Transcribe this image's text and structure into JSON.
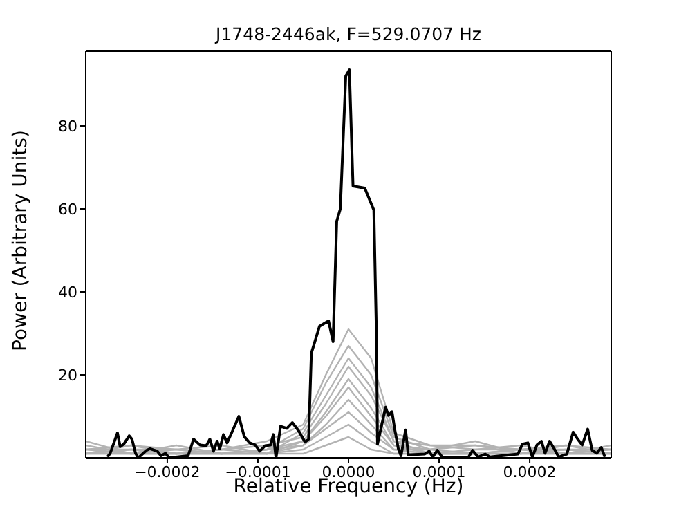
{
  "chart_data": {
    "type": "line",
    "title": "J1748-2446ak, F=529.0707 Hz",
    "xlabel": "Relative Frequency (Hz)",
    "ylabel": "Power (Arbitrary Units)",
    "xlim": [
      -0.00029,
      0.00029
    ],
    "ylim": [
      0,
      98
    ],
    "xticks": [
      {
        "value": -0.0002,
        "label": "−0.0002"
      },
      {
        "value": -0.0001,
        "label": "−0.0001"
      },
      {
        "value": 0,
        "label": "0.0000"
      },
      {
        "value": 0.0001,
        "label": "0.0001"
      },
      {
        "value": 0.0002,
        "label": "0.0002"
      }
    ],
    "yticks": [
      20,
      40,
      60,
      80
    ],
    "grid": false,
    "marker": "none",
    "line_style": "solid",
    "series": [
      {
        "color": "#b3b3b3",
        "x": [
          -0.00029,
          -0.00024,
          -0.00019,
          -0.00014,
          -9e-05,
          -5e-05,
          -2.5e-05,
          0,
          2.5e-05,
          5e-05,
          9e-05,
          0.00014,
          0.00019,
          0.00024,
          0.00029
        ],
        "values": [
          2,
          3,
          1,
          2,
          4,
          8,
          20,
          31,
          24,
          6,
          3,
          3,
          2,
          3,
          1
        ]
      },
      {
        "color": "#b3b3b3",
        "x": [
          -0.00029,
          -0.00024,
          -0.00019,
          -0.00014,
          -9e-05,
          -5e-05,
          -2.5e-05,
          0,
          2.5e-05,
          5e-05,
          9e-05,
          0.00014,
          0.00019,
          0.00024,
          0.00029
        ],
        "values": [
          3,
          1,
          3,
          1,
          2,
          7,
          18,
          27,
          20,
          5,
          2,
          4,
          1,
          2,
          2
        ]
      },
      {
        "color": "#b3b3b3",
        "x": [
          -0.00029,
          -0.00024,
          -0.00019,
          -0.00014,
          -9e-05,
          -5e-05,
          -2.5e-05,
          0,
          2.5e-05,
          5e-05,
          9e-05,
          0.00014,
          0.00019,
          0.00024,
          0.00029
        ],
        "values": [
          1,
          2,
          2,
          3,
          1,
          6,
          15,
          24,
          17,
          4,
          3,
          2,
          3,
          1,
          3
        ]
      },
      {
        "color": "#b3b3b3",
        "x": [
          -0.00029,
          -0.00024,
          -0.00019,
          -0.00014,
          -9e-05,
          -5e-05,
          -2.5e-05,
          0,
          2.5e-05,
          5e-05,
          9e-05,
          0.00014,
          0.00019,
          0.00024,
          0.00029
        ],
        "values": [
          4,
          1,
          1,
          2,
          3,
          5,
          13,
          22,
          15,
          4,
          1,
          1,
          2,
          2,
          1
        ]
      },
      {
        "color": "#b3b3b3",
        "x": [
          -0.00029,
          -0.00024,
          -0.00019,
          -0.00014,
          -9e-05,
          -5e-05,
          -2.5e-05,
          0,
          2.5e-05,
          5e-05,
          9e-05,
          0.00014,
          0.00019,
          0.00024,
          0.00029
        ],
        "values": [
          1,
          3,
          2,
          1,
          2,
          4,
          11,
          19,
          12,
          3,
          2,
          3,
          1,
          3,
          2
        ]
      },
      {
        "color": "#b3b3b3",
        "x": [
          -0.00029,
          -0.00024,
          -0.00019,
          -0.00014,
          -9e-05,
          -5e-05,
          -2.5e-05,
          0,
          2.5e-05,
          5e-05,
          9e-05,
          0.00014,
          0.00019,
          0.00024,
          0.00029
        ],
        "values": [
          2,
          2,
          1,
          2,
          1,
          4,
          10,
          17,
          10,
          3,
          1,
          2,
          2,
          1,
          1
        ]
      },
      {
        "color": "#b3b3b3",
        "x": [
          -0.00029,
          -0.00024,
          -0.00019,
          -0.00014,
          -9e-05,
          -5e-05,
          -2.5e-05,
          0,
          2.5e-05,
          5e-05,
          9e-05,
          0.00014,
          0.00019,
          0.00024,
          0.00029
        ],
        "values": [
          1,
          1,
          2,
          1,
          1,
          3,
          8,
          14,
          8,
          2,
          2,
          1,
          1,
          2,
          1
        ]
      },
      {
        "color": "#b3b3b3",
        "x": [
          -0.00029,
          -0.00024,
          -0.00019,
          -0.00014,
          -9e-05,
          -5e-05,
          -2.5e-05,
          0,
          2.5e-05,
          5e-05,
          9e-05,
          0.00014,
          0.00019,
          0.00024,
          0.00029
        ],
        "values": [
          2,
          1,
          1,
          1,
          2,
          3,
          7,
          11,
          6,
          2,
          1,
          1,
          2,
          1,
          2
        ]
      },
      {
        "color": "#b3b3b3",
        "x": [
          -0.00029,
          -0.00024,
          -0.00019,
          -0.00014,
          -9e-05,
          -5e-05,
          -2.5e-05,
          0,
          2.5e-05,
          5e-05,
          9e-05,
          0.00014,
          0.00019,
          0.00024,
          0.00029
        ],
        "values": [
          1,
          2,
          1,
          1,
          1,
          2,
          5,
          8,
          4,
          1,
          1,
          1,
          1,
          1,
          1
        ]
      },
      {
        "color": "#b3b3b3",
        "x": [
          -0.00029,
          -0.00024,
          -0.00019,
          -0.00014,
          -9e-05,
          -5e-05,
          -2.5e-05,
          0,
          2.5e-05,
          5e-05,
          9e-05,
          0.00014,
          0.00019,
          0.00024,
          0.00029
        ],
        "values": [
          1,
          1,
          1,
          1,
          1,
          1,
          3,
          5,
          2,
          1,
          1,
          1,
          1,
          1,
          1
        ]
      },
      {
        "color": "#000000",
        "x": [
          -0.000266,
          -0.000263,
          -0.000255,
          -0.000252,
          -0.000248,
          -0.000242,
          -0.000239,
          -0.000235,
          -0.000232,
          -0.000223,
          -0.000219,
          -0.000211,
          -0.000207,
          -0.000202,
          -0.000198,
          -0.000177,
          -0.000171,
          -0.000164,
          -0.000157,
          -0.000153,
          -0.000149,
          -0.000145,
          -0.000142,
          -0.000138,
          -0.000134,
          -0.000129,
          -0.000121,
          -0.000115,
          -0.000109,
          -0.000103,
          -9.8e-05,
          -9.2e-05,
          -8.6e-05,
          -8.3e-05,
          -8e-05,
          -7.5e-05,
          -6.8e-05,
          -6.2e-05,
          -5.5e-05,
          -4.8e-05,
          -4.4e-05,
          -4.1e-05,
          -3.2e-05,
          -2.2e-05,
          -1.7e-05,
          -1.3e-05,
          -9e-06,
          -3e-06,
          1e-06,
          5e-06,
          1.8e-05,
          2.8e-05,
          3.1e-05,
          3.2e-05,
          4.1e-05,
          4.4e-05,
          4.8e-05,
          5.1e-05,
          5.5e-05,
          5.8e-05,
          6.3e-05,
          6.6e-05,
          8.4e-05,
          8.9e-05,
          9.3e-05,
          9.8e-05,
          0.000104,
          0.000132,
          0.000137,
          0.000143,
          0.000151,
          0.000156,
          0.000187,
          0.000192,
          0.000198,
          0.000203,
          0.000208,
          0.000213,
          0.000217,
          0.000222,
          0.000227,
          0.000232,
          0.000241,
          0.000248,
          0.000253,
          0.000258,
          0.000264,
          0.000269,
          0.000274,
          0.000279,
          0.000283
        ],
        "values": [
          0.2,
          1.1,
          6,
          2.7,
          3.3,
          5.3,
          4.5,
          1.1,
          0,
          1.8,
          2.2,
          1.6,
          0.5,
          1.1,
          0,
          0.5,
          4.5,
          3.1,
          2.9,
          4.5,
          1.6,
          4,
          2.2,
          5.6,
          3.6,
          6,
          10,
          5.1,
          3.6,
          3.1,
          1.6,
          2.9,
          3.1,
          5.6,
          0,
          7.6,
          7.1,
          8.5,
          6.5,
          3.8,
          4.5,
          25.2,
          31.7,
          33,
          28,
          57,
          60,
          92,
          93.5,
          65.5,
          65,
          59.7,
          28,
          3.3,
          12.2,
          10.2,
          11.1,
          6.9,
          2.2,
          0.5,
          6.7,
          0.7,
          0.9,
          1.6,
          0.2,
          1.8,
          0,
          0,
          1.8,
          0.2,
          0.9,
          0.2,
          0.9,
          3.3,
          3.6,
          0.2,
          3.1,
          4,
          1.1,
          4,
          2.2,
          0.2,
          0.9,
          6.2,
          4.5,
          3.1,
          6.9,
          1.8,
          1.1,
          2.5,
          0.2
        ]
      }
    ]
  }
}
